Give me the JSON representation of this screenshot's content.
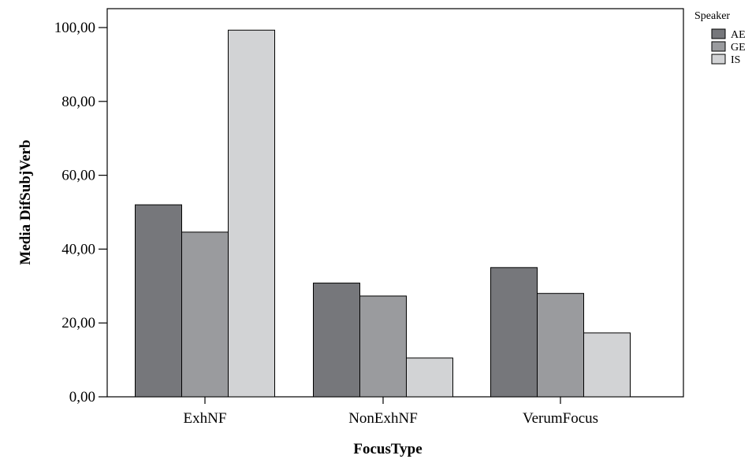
{
  "chart_data": {
    "type": "bar",
    "title": "",
    "xlabel": "FocusType",
    "ylabel": "Media DifSubjVerb",
    "categories": [
      "ExhNF",
      "NonExhNF",
      "VerumFocus"
    ],
    "series": [
      {
        "name": "AE",
        "values": [
          52.0,
          30.8,
          35.0
        ],
        "color": "#76777b"
      },
      {
        "name": "GE",
        "values": [
          44.6,
          27.3,
          28.0
        ],
        "color": "#9a9b9e"
      },
      {
        "name": "IS",
        "values": [
          99.3,
          10.5,
          17.3
        ],
        "color": "#d2d3d5"
      }
    ],
    "ylim": [
      0,
      100
    ],
    "yticks": [
      "0,00",
      "20,00",
      "40,00",
      "60,00",
      "80,00",
      "100,00"
    ],
    "ytick_values": [
      0,
      20,
      40,
      60,
      80,
      100
    ],
    "grid": false,
    "legend": {
      "title": "Speaker",
      "position": "top-right"
    }
  }
}
